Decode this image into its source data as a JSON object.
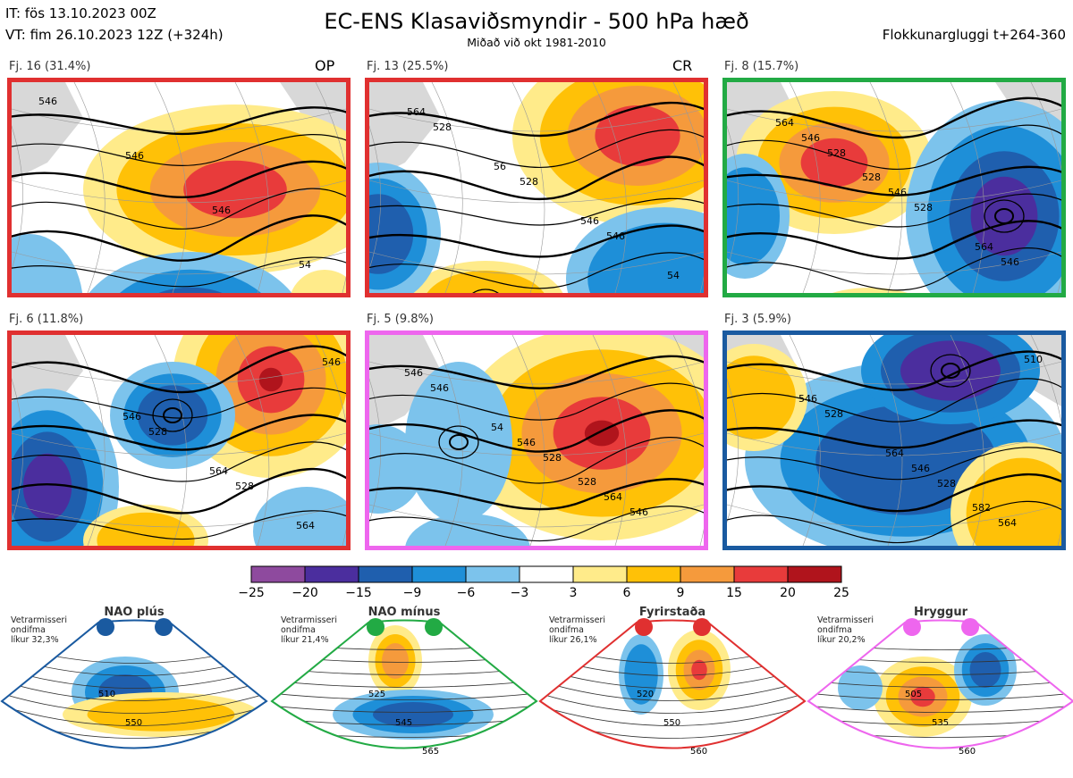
{
  "header": {
    "it": "IT: fös 13.10.2023 00Z",
    "vt": "VT: fim 26.10.2023 12Z  (+324h)",
    "title": "EC-ENS Klasaviðsmyndir - 500 hPa hæð",
    "subtitle": "Miðað við okt 1981-2010",
    "window": "Flokkunargluggi t+264-360"
  },
  "panels": [
    {
      "label": "Fj. 16 (31.4%)",
      "tag": "OP",
      "border": "#e03030",
      "contours": [
        "546",
        "546",
        "546",
        "54"
      ]
    },
    {
      "label": "Fj. 13 (25.5%)",
      "tag": "CR",
      "border": "#e03030",
      "contours": [
        "528",
        "528",
        "546",
        "564",
        "56",
        "546",
        "54"
      ]
    },
    {
      "label": "Fj. 8 (15.7%)",
      "tag": "",
      "border": "#22aa44",
      "contours": [
        "528",
        "528",
        "546",
        "546",
        "546",
        "564",
        "564",
        "528"
      ]
    },
    {
      "label": "Fj. 6 (11.8%)",
      "tag": "",
      "border": "#e03030",
      "contours": [
        "528",
        "528",
        "546",
        "546",
        "564",
        "564"
      ]
    },
    {
      "label": "Fj. 5 (9.8%)",
      "tag": "",
      "border": "#ee66ee",
      "contours": [
        "528",
        "546",
        "546",
        "546",
        "564",
        "546",
        "54",
        "528"
      ]
    },
    {
      "label": "Fj. 3 (5.9%)",
      "tag": "",
      "border": "#1a5aa0",
      "contours": [
        "528",
        "510",
        "528",
        "546",
        "564",
        "546",
        "564",
        "582"
      ]
    }
  ],
  "colorbar": {
    "ticks": [
      "−25",
      "−20",
      "−15",
      "−9",
      "−6",
      "−3",
      "3",
      "6",
      "9",
      "15",
      "20",
      "25"
    ],
    "colors": [
      "#8e4a9e",
      "#4b2e9e",
      "#1f5fae",
      "#1e8fd8",
      "#7cc3ec",
      "#ffffff",
      "#ffeb8a",
      "#ffc107",
      "#f59a3c",
      "#e83b3b",
      "#b0141c"
    ]
  },
  "regimes": [
    {
      "name": "NAO plús",
      "note": [
        "Vetrarmisseri",
        "ondifma",
        "líkur 32,3%"
      ],
      "color": "#1a5aa0",
      "contours": [
        "510",
        "550"
      ]
    },
    {
      "name": "NAO mínus",
      "note": [
        "Vetrarmisseri",
        "ondifma",
        "líkur 21,4%"
      ],
      "color": "#22aa44",
      "contours": [
        "525",
        "545",
        "565"
      ]
    },
    {
      "name": "Fyrirstaða",
      "note": [
        "Vetrarmisseri",
        "ondifma",
        "líkur 26,1%"
      ],
      "color": "#e03030",
      "contours": [
        "520",
        "550",
        "560"
      ]
    },
    {
      "name": "Hryggur",
      "note": [
        "Vetrarmisseri",
        "ondifma",
        "líkur 20,2%"
      ],
      "color": "#ee66ee",
      "contours": [
        "505",
        "535",
        "560"
      ]
    }
  ],
  "chart_data": {
    "type": "heatmap",
    "title": "EC-ENS Klasaviðsmyndir - 500 hPa hæð",
    "colorbar_levels": [
      -25,
      -20,
      -15,
      -9,
      -6,
      -3,
      3,
      6,
      9,
      15,
      20,
      25
    ],
    "cluster_probabilities": [
      {
        "cluster": "Fj. 16",
        "percent": 31.4
      },
      {
        "cluster": "Fj. 13",
        "percent": 25.5
      },
      {
        "cluster": "Fj. 8",
        "percent": 15.7
      },
      {
        "cluster": "Fj. 6",
        "percent": 11.8
      },
      {
        "cluster": "Fj. 5",
        "percent": 9.8
      },
      {
        "cluster": "Fj. 3",
        "percent": 5.9
      }
    ],
    "regime_probabilities": [
      {
        "regime": "NAO plús",
        "percent": 32.3
      },
      {
        "regime": "NAO mínus",
        "percent": 21.4
      },
      {
        "regime": "Fyrirstaða",
        "percent": 26.1
      },
      {
        "regime": "Hryggur",
        "percent": 20.2
      }
    ]
  }
}
